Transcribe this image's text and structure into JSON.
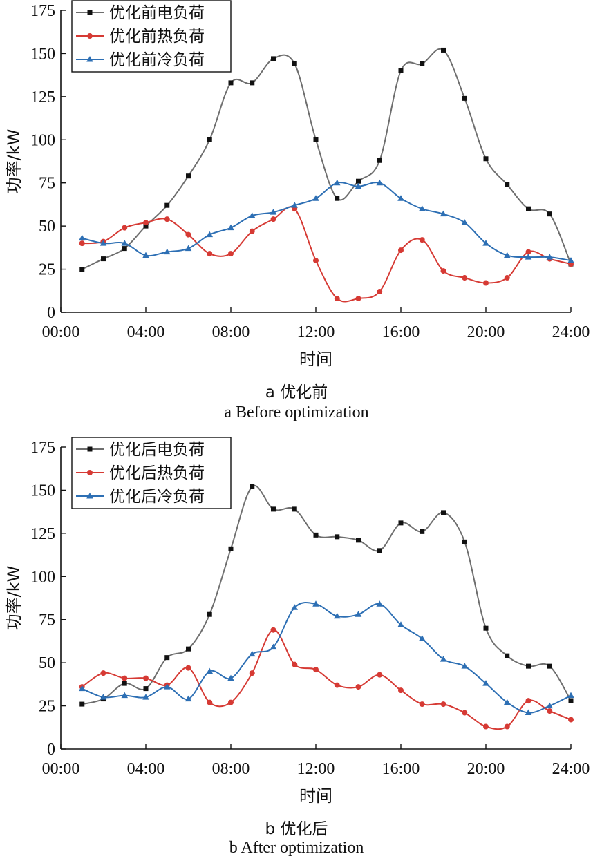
{
  "chart_data": [
    {
      "type": "line",
      "caption_cn": "a  优化前",
      "caption_en": "a  Before optimization",
      "xlabel": "时间",
      "ylabel": "功率/kW",
      "ylim": [
        0,
        175
      ],
      "xlim": [
        0,
        24
      ],
      "yticks": [
        "0",
        "25",
        "50",
        "75",
        "100",
        "125",
        "150",
        "175"
      ],
      "xticks": [
        "00:00",
        "04:00",
        "08:00",
        "12:00",
        "16:00",
        "20:00",
        "24:00"
      ],
      "legend_position": "top-left",
      "x": [
        1,
        2,
        3,
        4,
        5,
        6,
        7,
        8,
        9,
        10,
        11,
        12,
        13,
        14,
        15,
        16,
        17,
        18,
        19,
        20,
        21,
        22,
        23,
        24
      ],
      "series": [
        {
          "name": "优化前电负荷",
          "color": "#6e6e6e",
          "marker": "square",
          "values": [
            25,
            31,
            37,
            50,
            62,
            79,
            100,
            133,
            133,
            147,
            144,
            100,
            66,
            76,
            88,
            140,
            144,
            152,
            124,
            89,
            74,
            60,
            57,
            28
          ]
        },
        {
          "name": "优化前热负荷",
          "color": "#d63a34",
          "marker": "circle",
          "values": [
            40,
            41,
            49,
            52,
            54,
            45,
            34,
            34,
            47,
            54,
            60,
            30,
            8,
            8,
            12,
            36,
            42,
            24,
            20,
            17,
            20,
            35,
            31,
            28
          ]
        },
        {
          "name": "优化前冷负荷",
          "color": "#2d6fb4",
          "marker": "triangle",
          "values": [
            43,
            40,
            40,
            33,
            35,
            37,
            45,
            49,
            56,
            58,
            62,
            66,
            75,
            73,
            75,
            66,
            60,
            57,
            52,
            40,
            33,
            32,
            32,
            30
          ]
        }
      ]
    },
    {
      "type": "line",
      "caption_cn": "b  优化后",
      "caption_en": "b  After optimization",
      "xlabel": "时间",
      "ylabel": "功率/kW",
      "ylim": [
        0,
        175
      ],
      "xlim": [
        0,
        24
      ],
      "yticks": [
        "0",
        "25",
        "50",
        "75",
        "100",
        "125",
        "150",
        "175"
      ],
      "xticks": [
        "00:00",
        "04:00",
        "08:00",
        "12:00",
        "16:00",
        "20:00",
        "24:00"
      ],
      "legend_position": "top-left",
      "x": [
        1,
        2,
        3,
        4,
        5,
        6,
        7,
        8,
        9,
        10,
        11,
        12,
        13,
        14,
        15,
        16,
        17,
        18,
        19,
        20,
        21,
        22,
        23,
        24
      ],
      "series": [
        {
          "name": "优化后电负荷",
          "color": "#6e6e6e",
          "marker": "square",
          "values": [
            26,
            29,
            38,
            35,
            53,
            58,
            78,
            116,
            152,
            139,
            139,
            124,
            123,
            121,
            115,
            131,
            126,
            137,
            120,
            70,
            54,
            48,
            48,
            28
          ]
        },
        {
          "name": "优化后热负荷",
          "color": "#d63a34",
          "marker": "circle",
          "values": [
            36,
            44,
            41,
            41,
            37,
            47,
            27,
            27,
            44,
            69,
            49,
            46,
            37,
            36,
            43,
            34,
            26,
            26,
            21,
            13,
            13,
            28,
            22,
            17
          ]
        },
        {
          "name": "优化后冷负荷",
          "color": "#2d6fb4",
          "marker": "triangle",
          "values": [
            35,
            30,
            31,
            30,
            36,
            29,
            45,
            41,
            55,
            59,
            82,
            84,
            77,
            78,
            84,
            72,
            64,
            52,
            48,
            38,
            27,
            21,
            25,
            31
          ]
        }
      ]
    }
  ]
}
